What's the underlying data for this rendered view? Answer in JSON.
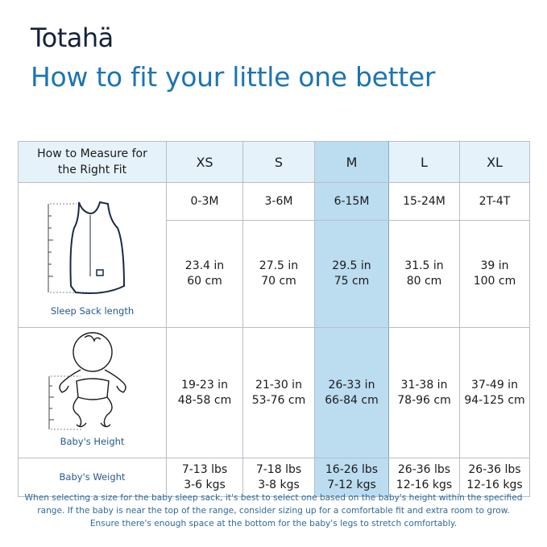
{
  "brand": {
    "logo": "Totahä"
  },
  "title": "How to fit your little one better",
  "table": {
    "header": {
      "label": "How to Measure for the Right Fit",
      "sizes": [
        "XS",
        "S",
        "M",
        "L",
        "XL"
      ]
    },
    "highlight_size": "M",
    "highlight_color": "#bcdcf0",
    "rows": [
      {
        "label": "",
        "icon": "",
        "values": [
          "0-3M",
          "3-6M",
          "6-15M",
          "15-24M",
          "2T-4T"
        ]
      },
      {
        "label": "Sleep Sack length",
        "icon": "sleep-sack-icon",
        "values": [
          [
            "23.4 in",
            "60 cm"
          ],
          [
            "27.5 in",
            "70 cm"
          ],
          [
            "29.5 in",
            "75 cm"
          ],
          [
            "31.5 in",
            "80 cm"
          ],
          [
            "39 in",
            "100 cm"
          ]
        ]
      },
      {
        "label": "Baby's Height",
        "icon": "baby-icon",
        "values": [
          [
            "19-23 in",
            "48-58 cm"
          ],
          [
            "21-30 in",
            "53-76 cm"
          ],
          [
            "26-33 in",
            "66-84 cm"
          ],
          [
            "31-38 in",
            "78-96 cm"
          ],
          [
            "37-49 in",
            "94-125 cm"
          ]
        ]
      },
      {
        "label": "Baby's Weight",
        "icon": "",
        "values": [
          [
            "7-13 lbs",
            "3-6 kgs"
          ],
          [
            "7-18 lbs",
            "3-8 kgs"
          ],
          [
            "16-26 lbs",
            "7-12 kgs"
          ],
          [
            "26-36 lbs",
            "12-16 kgs"
          ],
          [
            "26-36 lbs",
            "12-16 kgs"
          ]
        ]
      }
    ]
  },
  "footer": [
    "When selecting a size for the baby sleep sack, it's best to select one based on the baby's height within the specified",
    "range. If the baby is near the top of the range, consider sizing up for a comfortable fit and extra room to grow.",
    "Ensure there's enough space at the bottom for the baby's legs to stretch comfortably."
  ],
  "colors": {
    "title": "#1c74b4",
    "logo": "#14213d",
    "header_bg": "#e6f2fa",
    "label": "#245b8e"
  }
}
